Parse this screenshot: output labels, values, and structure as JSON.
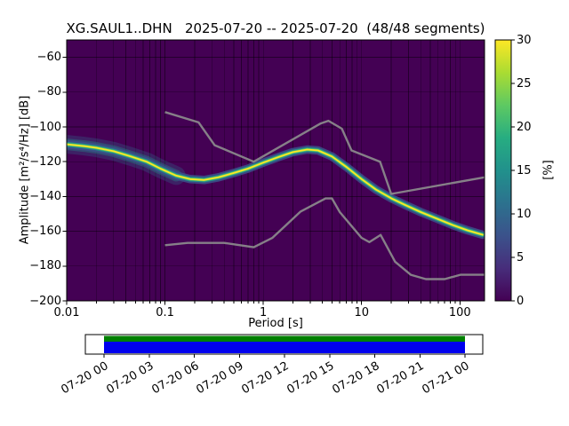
{
  "title": "XG.SAUL1..DHN   2025-07-20 -- 2025-07-20  (48/48 segments)",
  "axes": {
    "xlabel": "Period [s]",
    "ylabel": "Amplitude [m²/s⁴/Hz] [dB]",
    "x_scale": "log",
    "grid": true,
    "xlim": [
      0.01,
      178
    ],
    "ylim": [
      -200,
      -50
    ],
    "x_tick_values": [
      0.01,
      0.1,
      1,
      10,
      100
    ],
    "x_tick_labels": [
      "0.01",
      "0.1",
      "1",
      "10",
      "100"
    ],
    "y_tick_values": [
      -60,
      -80,
      -100,
      -120,
      -140,
      -160,
      -180,
      -200
    ],
    "y_tick_labels": [
      "−60",
      "−80",
      "−100",
      "−120",
      "−140",
      "−160",
      "−180",
      "−200"
    ]
  },
  "colorbar": {
    "label": "[%]",
    "min": 0,
    "max": 30,
    "tick_values": [
      0,
      5,
      10,
      15,
      20,
      25,
      30
    ],
    "tick_labels": [
      "0",
      "5",
      "10",
      "15",
      "20",
      "25",
      "30"
    ],
    "colormap": "viridis",
    "colormap_stops": [
      "#440154",
      "#472d7b",
      "#3b528b",
      "#2c728e",
      "#21918c",
      "#27ad81",
      "#5ec962",
      "#aadc32",
      "#fde725"
    ]
  },
  "chart_data": {
    "type": "heatmap",
    "title": "XG.SAUL1..DHN 2025-07-20 -- 2025-07-20 (48/48 segments)",
    "xlabel": "Period [s]",
    "ylabel": "Amplitude [m²/s⁴/Hz] [dB]",
    "x_scale": "log",
    "xlim": [
      0.01,
      178
    ],
    "ylim": [
      -200,
      -50
    ],
    "probability_range_percent": [
      0,
      30
    ],
    "background_value_color": "#440154",
    "series": [
      {
        "name": "psd-mode-ridge",
        "description": "Bright ridge (mode) of the PSD probability histogram; [period s, amplitude dB]",
        "points": [
          [
            0.01,
            -110
          ],
          [
            0.015,
            -111
          ],
          [
            0.02,
            -112
          ],
          [
            0.03,
            -114
          ],
          [
            0.045,
            -117
          ],
          [
            0.065,
            -120
          ],
          [
            0.09,
            -124
          ],
          [
            0.13,
            -128
          ],
          [
            0.18,
            -130
          ],
          [
            0.25,
            -130.5
          ],
          [
            0.35,
            -129
          ],
          [
            0.5,
            -126.5
          ],
          [
            0.7,
            -124
          ],
          [
            1,
            -120.5
          ],
          [
            1.4,
            -117.5
          ],
          [
            2,
            -114.5
          ],
          [
            2.8,
            -113
          ],
          [
            3.6,
            -113.5
          ],
          [
            5,
            -117
          ],
          [
            7,
            -123
          ],
          [
            10,
            -130
          ],
          [
            14,
            -136
          ],
          [
            20,
            -141
          ],
          [
            28,
            -145
          ],
          [
            40,
            -149
          ],
          [
            60,
            -153
          ],
          [
            85,
            -156.5
          ],
          [
            120,
            -159.5
          ],
          [
            170,
            -162
          ]
        ]
      },
      {
        "name": "noise-model-high-NHNM",
        "description": "Peterson New High Noise Model (gray reference line)",
        "color": "#8e8e8e",
        "points": [
          [
            0.1,
            -91.5
          ],
          [
            0.22,
            -97.4
          ],
          [
            0.32,
            -110.5
          ],
          [
            0.8,
            -120
          ],
          [
            3.8,
            -98.1
          ],
          [
            4.6,
            -96.5
          ],
          [
            6.3,
            -101
          ],
          [
            7.9,
            -113.5
          ],
          [
            15.4,
            -120
          ],
          [
            20,
            -138.5
          ],
          [
            178,
            -129
          ]
        ]
      },
      {
        "name": "noise-model-low-NLNM",
        "description": "Peterson New Low Noise Model (gray reference line)",
        "color": "#8e8e8e",
        "points": [
          [
            0.1,
            -168
          ],
          [
            0.17,
            -166.7
          ],
          [
            0.4,
            -166.7
          ],
          [
            0.8,
            -169.2
          ],
          [
            1.24,
            -163.7
          ],
          [
            2.4,
            -148.6
          ],
          [
            4.3,
            -141.1
          ],
          [
            5,
            -141.1
          ],
          [
            6,
            -149
          ],
          [
            10,
            -163.8
          ],
          [
            12,
            -166.2
          ],
          [
            15.6,
            -162.1
          ],
          [
            21.9,
            -177.5
          ],
          [
            31.6,
            -185
          ],
          [
            45,
            -187.5
          ],
          [
            70,
            -187.5
          ],
          [
            101,
            -185
          ],
          [
            154,
            -185
          ],
          [
            178,
            -185
          ]
        ]
      }
    ]
  },
  "timeline": {
    "description": "Data coverage bar: green = PSD segments used, blue = waveform data present",
    "tick_labels": [
      "07-20 00",
      "07-20 03",
      "07-20 06",
      "07-20 09",
      "07-20 12",
      "07-20 15",
      "07-20 18",
      "07-20 21",
      "07-21 00"
    ],
    "psd_coverage_color": "#008000",
    "data_coverage_color": "#0000ee",
    "background": "#ffffff"
  }
}
